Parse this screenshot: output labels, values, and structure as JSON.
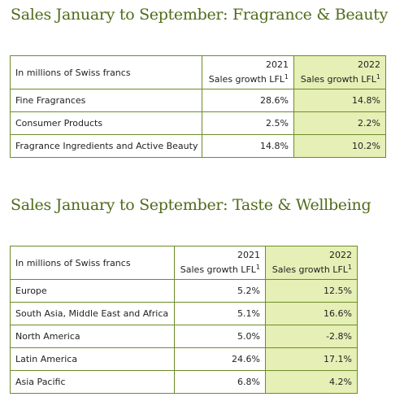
{
  "fragrance": {
    "title": "Sales January to September: Fragrance & Beauty",
    "header": {
      "label": "In millions of Swiss francs",
      "year_a": "2021",
      "year_b": "2022",
      "metric": "Sales growth LFL",
      "footnote": "1"
    },
    "rows": [
      {
        "label": "Fine Fragrances",
        "a": "28.6%",
        "b": "14.8%"
      },
      {
        "label": "Consumer Products",
        "a": "2.5%",
        "b": "2.2%"
      },
      {
        "label": "Fragrance Ingredients and Active Beauty",
        "a": "14.8%",
        "b": "10.2%"
      }
    ]
  },
  "taste": {
    "title": "Sales January to September: Taste & Wellbeing",
    "header": {
      "label": "In millions of Swiss francs",
      "year_a": "2021",
      "year_b": "2022",
      "metric": "Sales growth LFL",
      "footnote": "1"
    },
    "rows": [
      {
        "label": "Europe",
        "a": "5.2%",
        "b": "12.5%"
      },
      {
        "label": "South Asia, Middle East and Africa",
        "a": "5.1%",
        "b": "16.6%"
      },
      {
        "label": "North America",
        "a": "5.0%",
        "b": "-2.8%"
      },
      {
        "label": "Latin America",
        "a": "24.6%",
        "b": "17.1%"
      },
      {
        "label": "Asia Pacific",
        "a": "6.8%",
        "b": "4.2%"
      }
    ]
  },
  "colors": {
    "heading": "#4f6b1a",
    "border": "#6b8d2a",
    "highlight": "#e6efb6"
  }
}
